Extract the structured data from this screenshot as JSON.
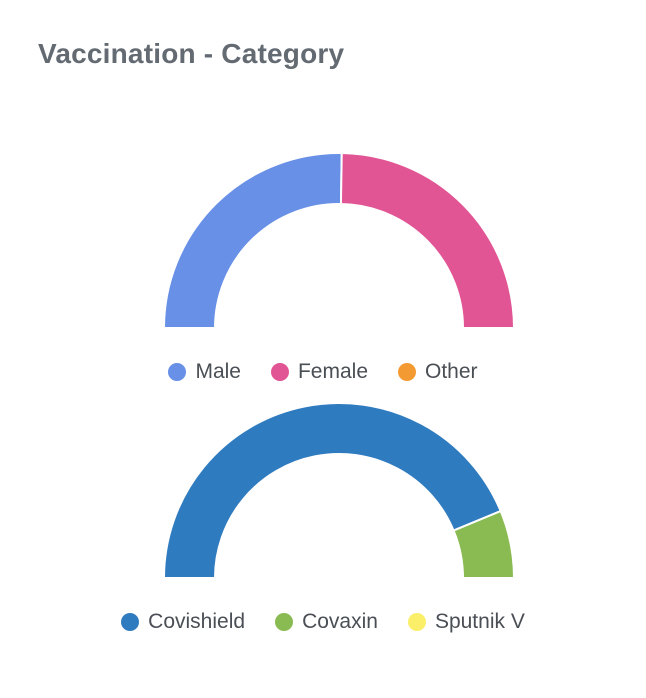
{
  "card": {
    "title": "Vaccination - Category"
  },
  "chart_data": [
    {
      "type": "pie",
      "subtype": "half-donut",
      "categories": [
        "Male",
        "Female",
        "Other"
      ],
      "values": [
        50.5,
        49.5,
        0
      ],
      "colors": [
        "#6790e6",
        "#e25595",
        "#f39a32"
      ],
      "legend": "bottom"
    },
    {
      "type": "pie",
      "subtype": "half-donut",
      "categories": [
        "Covishield",
        "Covaxin",
        "Sputnik V"
      ],
      "values": [
        87.5,
        12.5,
        0
      ],
      "colors": [
        "#2f7bbf",
        "#89bb52",
        "#fbef6a"
      ],
      "legend": "bottom"
    }
  ]
}
